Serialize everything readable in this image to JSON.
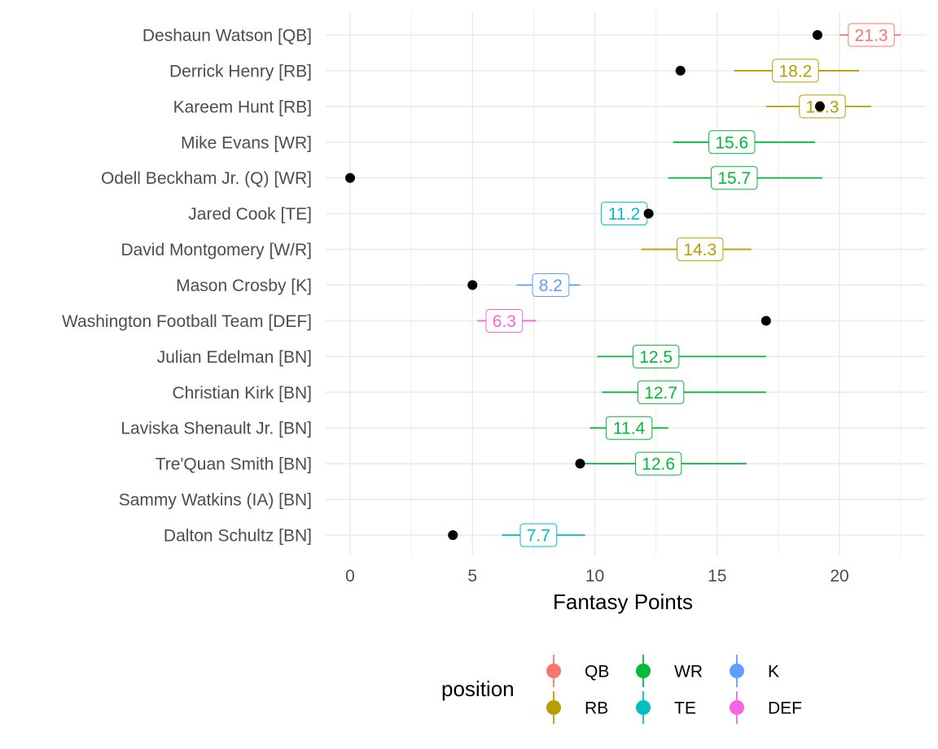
{
  "chart_data": {
    "type": "scatter",
    "xlabel": "Fantasy Points",
    "xlim": [
      -0.6,
      23.5
    ],
    "x_ticks": [
      0,
      5,
      10,
      15,
      20
    ],
    "x_tick_labels": [
      "0",
      "5",
      "10",
      "15",
      "20"
    ],
    "grid": true,
    "legend_position": "bottom",
    "legend_title": "position",
    "legend_entries": [
      {
        "name": "QB",
        "color": "#F8766D"
      },
      {
        "name": "RB",
        "color": "#B79F00"
      },
      {
        "name": "WR",
        "color": "#00BA38"
      },
      {
        "name": "TE",
        "color": "#00BFC4"
      },
      {
        "name": "K",
        "color": "#619CFF"
      },
      {
        "name": "DEF",
        "color": "#F564E3"
      }
    ],
    "players": [
      {
        "label": "Deshaun Watson [QB]",
        "position": "QB",
        "projection": 21.3,
        "projection_label": "21.3",
        "low": 20.0,
        "high": 22.5,
        "actual": 19.1
      },
      {
        "label": "Derrick Henry [RB]",
        "position": "RB",
        "projection": 18.2,
        "projection_label": "18.2",
        "low": 15.7,
        "high": 20.8,
        "actual": 13.5
      },
      {
        "label": "Kareem Hunt [RB]",
        "position": "RB",
        "projection": 19.3,
        "projection_label": "19.3",
        "low": 17.0,
        "high": 21.3,
        "actual": 19.2
      },
      {
        "label": "Mike Evans [WR]",
        "position": "WR",
        "projection": 15.6,
        "projection_label": "15.6",
        "low": 13.2,
        "high": 19.0,
        "actual": null
      },
      {
        "label": "Odell Beckham Jr. (Q) [WR]",
        "position": "WR",
        "projection": 15.7,
        "projection_label": "15.7",
        "low": 13.0,
        "high": 19.3,
        "actual": 0.0
      },
      {
        "label": "Jared Cook [TE]",
        "position": "TE",
        "projection": 11.2,
        "projection_label": "11.2",
        "low": 10.5,
        "high": 12.0,
        "actual": 12.2
      },
      {
        "label": "David Montgomery [W/R]",
        "position": "RB",
        "projection": 14.3,
        "projection_label": "14.3",
        "low": 11.9,
        "high": 16.4,
        "actual": null
      },
      {
        "label": "Mason Crosby [K]",
        "position": "K",
        "projection": 8.2,
        "projection_label": "8.2",
        "low": 6.8,
        "high": 9.4,
        "actual": 5.0
      },
      {
        "label": "Washington Football Team [DEF]",
        "position": "DEF",
        "projection": 6.3,
        "projection_label": "6.3",
        "low": 5.2,
        "high": 7.6,
        "actual": 17.0
      },
      {
        "label": "Julian Edelman [BN]",
        "position": "WR",
        "projection": 12.5,
        "projection_label": "12.5",
        "low": 10.1,
        "high": 17.0,
        "actual": null
      },
      {
        "label": "Christian Kirk [BN]",
        "position": "WR",
        "projection": 12.7,
        "projection_label": "12.7",
        "low": 10.3,
        "high": 17.0,
        "actual": null
      },
      {
        "label": "Laviska Shenault Jr. [BN]",
        "position": "WR",
        "projection": 11.4,
        "projection_label": "11.4",
        "low": 9.8,
        "high": 13.0,
        "actual": null
      },
      {
        "label": "Tre'Quan Smith [BN]",
        "position": "WR",
        "projection": 12.6,
        "projection_label": "12.6",
        "low": 9.6,
        "high": 16.2,
        "actual": 9.4
      },
      {
        "label": "Sammy Watkins (IA) [BN]",
        "position": "WR",
        "projection": null,
        "projection_label": "",
        "low": null,
        "high": null,
        "actual": null
      },
      {
        "label": "Dalton Schultz [BN]",
        "position": "TE",
        "projection": 7.7,
        "projection_label": "7.7",
        "low": 6.2,
        "high": 9.6,
        "actual": 4.2
      }
    ],
    "actual_point_color": "#000000",
    "grid_color": "#EBEBEB"
  }
}
